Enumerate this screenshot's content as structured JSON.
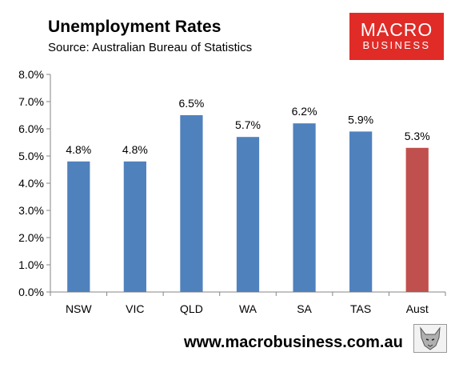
{
  "header": {
    "title": "Unemployment Rates",
    "subtitle": "Source: Australian Bureau of Statistics"
  },
  "logo": {
    "line1": "MACRO",
    "line2": "BUSINESS",
    "background": "#e02b27"
  },
  "footer": {
    "url": "www.macrobusiness.com.au",
    "mascot_icon": "wolf-head-icon"
  },
  "chart_data": {
    "type": "bar",
    "title": "Unemployment Rates",
    "subtitle": "Source: Australian Bureau of Statistics",
    "categories": [
      "NSW",
      "VIC",
      "QLD",
      "WA",
      "SA",
      "TAS",
      "Aust"
    ],
    "values": [
      4.8,
      4.8,
      6.5,
      5.7,
      6.2,
      5.9,
      5.3
    ],
    "data_labels": [
      "4.8%",
      "4.8%",
      "6.5%",
      "5.7%",
      "6.2%",
      "5.9%",
      "5.3%"
    ],
    "ylim": [
      0,
      8
    ],
    "yticks": [
      0,
      1,
      2,
      3,
      4,
      5,
      6,
      7,
      8
    ],
    "ytick_labels": [
      "0.0%",
      "1.0%",
      "2.0%",
      "3.0%",
      "4.0%",
      "5.0%",
      "6.0%",
      "7.0%",
      "8.0%"
    ],
    "xlabel": "",
    "ylabel": "",
    "grid": false,
    "legend": "none",
    "colors": {
      "default_bar": "#4f81bd",
      "highlight_bar": "#c0504d",
      "axis": "#868686"
    },
    "highlight_category": "Aust"
  }
}
